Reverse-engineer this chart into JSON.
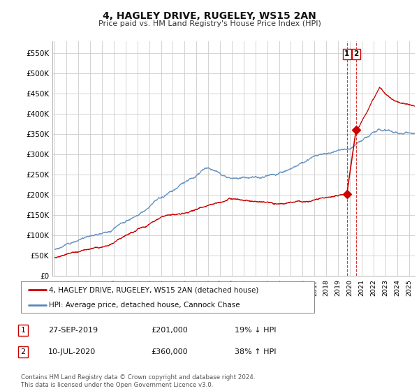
{
  "title": "4, HAGLEY DRIVE, RUGELEY, WS15 2AN",
  "subtitle": "Price paid vs. HM Land Registry's House Price Index (HPI)",
  "ylabel_ticks": [
    "£0",
    "£50K",
    "£100K",
    "£150K",
    "£200K",
    "£250K",
    "£300K",
    "£350K",
    "£400K",
    "£450K",
    "£500K",
    "£550K"
  ],
  "ytick_values": [
    0,
    50000,
    100000,
    150000,
    200000,
    250000,
    300000,
    350000,
    400000,
    450000,
    500000,
    550000
  ],
  "ylim": [
    0,
    580000
  ],
  "xlim_start": 1994.8,
  "xlim_end": 2025.5,
  "legend_line1": "4, HAGLEY DRIVE, RUGELEY, WS15 2AN (detached house)",
  "legend_line2": "HPI: Average price, detached house, Cannock Chase",
  "table_rows": [
    {
      "num": "1",
      "date": "27-SEP-2019",
      "price": "£201,000",
      "change": "19% ↓ HPI"
    },
    {
      "num": "2",
      "date": "10-JUL-2020",
      "price": "£360,000",
      "change": "38% ↑ HPI"
    }
  ],
  "footer": "Contains HM Land Registry data © Crown copyright and database right 2024.\nThis data is licensed under the Open Government Licence v3.0.",
  "sale1_x": 2019.74,
  "sale1_y": 201000,
  "sale2_x": 2020.52,
  "sale2_y": 360000,
  "red_color": "#cc0000",
  "blue_color": "#5588bb",
  "bg_color": "#ffffff",
  "grid_color": "#cccccc"
}
